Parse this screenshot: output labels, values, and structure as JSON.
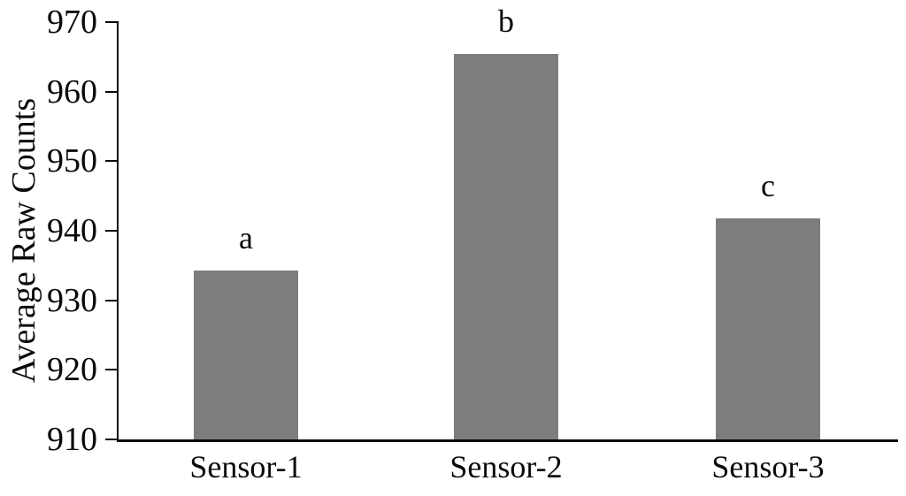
{
  "figure": {
    "background_color": "#ffffff",
    "text_color": "#0a0a0a"
  },
  "chart_data": {
    "type": "bar",
    "title": "",
    "xlabel": "",
    "ylabel": "Average Raw Counts",
    "categories": [
      "Sensor-1",
      "Sensor-2",
      "Sensor-3"
    ],
    "values": [
      934.3,
      965.4,
      941.8
    ],
    "bar_annotations": [
      "a",
      "b",
      "c"
    ],
    "ylim": [
      910,
      970
    ],
    "yticks": [
      910,
      920,
      930,
      940,
      950,
      960,
      970
    ],
    "grid": false,
    "legend": null,
    "bar_color": "#7d7d7d",
    "axis_color": "#0a0a0a"
  }
}
